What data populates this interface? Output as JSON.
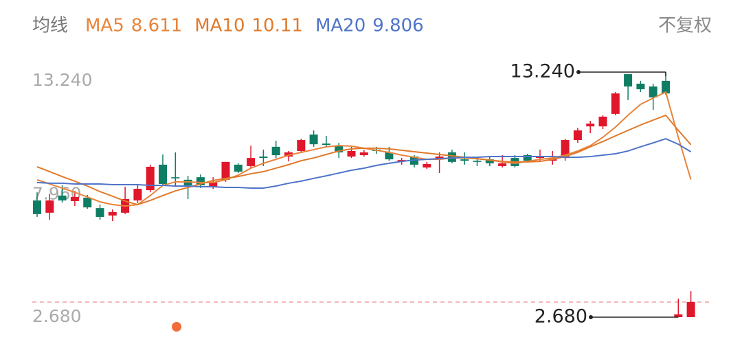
{
  "chart_data": {
    "type": "candlestick",
    "indicator_label": "均线",
    "adjust_label": "不复权",
    "ylim": [
      2.68,
      13.24
    ],
    "yticks": [
      {
        "value": 13.24,
        "label": "13.240"
      },
      {
        "value": 7.96,
        "label": "7.960"
      },
      {
        "value": 2.68,
        "label": "2.680"
      }
    ],
    "up_color": "#e0162b",
    "down_color": "#0f7d64",
    "max_marker": {
      "value": 13.24,
      "label": "13.240"
    },
    "min_marker": {
      "value": 2.68,
      "label": "2.680"
    },
    "price_line": 3.33,
    "price_line_color": "#f0a0a0",
    "ohlc": [
      [
        7.71,
        8.06,
        7.0,
        7.12
      ],
      [
        7.18,
        8.0,
        6.88,
        7.71
      ],
      [
        7.92,
        8.36,
        7.62,
        7.71
      ],
      [
        7.68,
        8.12,
        7.47,
        7.86
      ],
      [
        7.83,
        7.95,
        7.35,
        7.41
      ],
      [
        7.38,
        7.53,
        6.88,
        7.0
      ],
      [
        7.06,
        7.32,
        6.82,
        7.21
      ],
      [
        7.18,
        8.3,
        7.12,
        7.77
      ],
      [
        7.71,
        8.36,
        7.59,
        8.21
      ],
      [
        8.15,
        9.25,
        8.06,
        9.16
      ],
      [
        9.25,
        9.69,
        8.36,
        8.42
      ],
      [
        8.71,
        9.78,
        8.3,
        8.66
      ],
      [
        8.6,
        8.77,
        7.77,
        8.36
      ],
      [
        8.71,
        8.83,
        8.24,
        8.36
      ],
      [
        8.3,
        8.71,
        8.21,
        8.51
      ],
      [
        8.6,
        9.37,
        8.51,
        9.37
      ],
      [
        9.25,
        9.31,
        8.89,
        8.95
      ],
      [
        9.19,
        10.07,
        9.1,
        9.54
      ],
      [
        9.6,
        9.9,
        9.19,
        9.54
      ],
      [
        10.02,
        10.28,
        9.54,
        9.66
      ],
      [
        9.6,
        9.84,
        9.39,
        9.78
      ],
      [
        9.84,
        10.37,
        9.78,
        10.31
      ],
      [
        10.55,
        10.73,
        10.02,
        10.13
      ],
      [
        10.16,
        10.49,
        10.02,
        10.1
      ],
      [
        10.07,
        10.19,
        9.54,
        9.78
      ],
      [
        9.6,
        10.02,
        9.54,
        9.84
      ],
      [
        9.66,
        9.9,
        9.6,
        9.78
      ],
      [
        9.9,
        10.02,
        9.72,
        9.84
      ],
      [
        9.78,
        10.02,
        9.42,
        9.48
      ],
      [
        9.39,
        9.54,
        9.25,
        9.45
      ],
      [
        9.6,
        9.66,
        9.13,
        9.25
      ],
      [
        9.13,
        9.37,
        9.07,
        9.28
      ],
      [
        9.48,
        9.78,
        8.89,
        9.6
      ],
      [
        9.78,
        9.9,
        9.31,
        9.37
      ],
      [
        9.48,
        9.78,
        9.25,
        9.42
      ],
      [
        9.42,
        9.54,
        9.19,
        9.37
      ],
      [
        9.48,
        9.6,
        9.19,
        9.31
      ],
      [
        9.19,
        9.66,
        9.13,
        9.31
      ],
      [
        9.54,
        9.66,
        9.13,
        9.19
      ],
      [
        9.66,
        9.72,
        9.37,
        9.42
      ],
      [
        9.54,
        9.9,
        9.42,
        9.6
      ],
      [
        9.42,
        9.84,
        9.25,
        9.54
      ],
      [
        9.54,
        10.37,
        9.42,
        10.31
      ],
      [
        10.31,
        10.84,
        10.19,
        10.73
      ],
      [
        10.9,
        11.14,
        10.61,
        11.02
      ],
      [
        10.9,
        11.38,
        10.78,
        11.32
      ],
      [
        11.44,
        12.38,
        11.38,
        12.32
      ],
      [
        13.15,
        13.15,
        12.03,
        12.62
      ],
      [
        12.74,
        12.86,
        12.38,
        12.5
      ],
      [
        12.62,
        12.74,
        11.61,
        12.15
      ],
      [
        12.86,
        13.24,
        12.26,
        12.32
      ],
      [
        2.68,
        3.48,
        2.68,
        2.8
      ],
      [
        2.68,
        3.8,
        2.68,
        3.33
      ]
    ],
    "series": [
      {
        "name": "MA5",
        "color": "#e8833a",
        "values": [
          8.6,
          8.42,
          8.24,
          8.06,
          7.86,
          7.65,
          7.53,
          7.47,
          7.53,
          7.92,
          8.36,
          8.51,
          8.51,
          8.48,
          8.48,
          8.6,
          8.8,
          9.1,
          9.31,
          9.48,
          9.66,
          9.78,
          9.9,
          10.02,
          10.07,
          10.05,
          9.96,
          9.87,
          9.78,
          9.66,
          9.57,
          9.48,
          9.48,
          9.54,
          9.54,
          9.51,
          9.45,
          9.37,
          9.31,
          9.39,
          9.48,
          9.54,
          9.66,
          9.84,
          10.07,
          10.43,
          10.87,
          11.38,
          11.85,
          12.12,
          12.38,
          10.43,
          8.611
        ]
      },
      {
        "name": "MA10",
        "color": "#e07a2c",
        "values": [
          9.16,
          8.95,
          8.74,
          8.54,
          8.33,
          8.09,
          7.89,
          7.68,
          7.53,
          7.71,
          7.92,
          8.12,
          8.27,
          8.42,
          8.57,
          8.66,
          8.74,
          8.86,
          8.95,
          9.1,
          9.25,
          9.42,
          9.54,
          9.69,
          9.84,
          9.93,
          9.96,
          9.96,
          9.93,
          9.87,
          9.81,
          9.75,
          9.69,
          9.63,
          9.57,
          9.51,
          9.45,
          9.39,
          9.37,
          9.37,
          9.39,
          9.48,
          9.6,
          9.78,
          10.02,
          10.25,
          10.49,
          10.73,
          10.96,
          11.17,
          11.38,
          10.73,
          10.11
        ]
      },
      {
        "name": "MA20",
        "color": "#4f74c8",
        "values": [
          8.48,
          8.45,
          8.45,
          8.42,
          8.42,
          8.42,
          8.39,
          8.39,
          8.39,
          8.36,
          8.36,
          8.33,
          8.33,
          8.3,
          8.3,
          8.27,
          8.27,
          8.24,
          8.24,
          8.33,
          8.45,
          8.54,
          8.66,
          8.77,
          8.89,
          9.01,
          9.1,
          9.22,
          9.31,
          9.39,
          9.45,
          9.48,
          9.51,
          9.54,
          9.57,
          9.57,
          9.6,
          9.6,
          9.6,
          9.6,
          9.6,
          9.6,
          9.57,
          9.57,
          9.6,
          9.66,
          9.72,
          9.84,
          10.02,
          10.19,
          10.37,
          10.13,
          9.806
        ]
      }
    ]
  }
}
